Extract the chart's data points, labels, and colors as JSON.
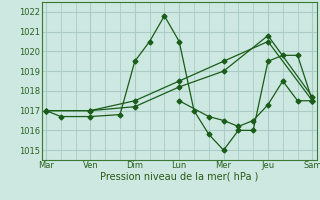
{
  "xlabel": "Pression niveau de la mer( hPa )",
  "bg_color": "#cce8e0",
  "grid_color": "#aaccc4",
  "line_color": "#1a5c1a",
  "marker": "D",
  "marker_size": 2.5,
  "ylim": [
    1014.5,
    1022.5
  ],
  "yticks": [
    1015,
    1016,
    1017,
    1018,
    1019,
    1020,
    1021,
    1022
  ],
  "day_labels": [
    "Mar",
    "Ven",
    "Dim",
    "Lun",
    "Mer",
    "Jeu",
    "Sam"
  ],
  "day_positions": [
    0,
    3,
    6,
    9,
    12,
    15,
    18
  ],
  "xlim": [
    -0.3,
    18.3
  ],
  "series": [
    {
      "x": [
        0,
        1,
        3,
        5,
        6,
        7,
        8,
        9,
        10,
        11,
        12,
        13,
        14,
        15,
        16,
        17,
        18
      ],
      "y": [
        1017.0,
        1016.7,
        1016.7,
        1016.8,
        1019.5,
        1020.5,
        1021.8,
        1020.5,
        1017.0,
        1015.8,
        1015.0,
        1016.0,
        1016.0,
        1019.5,
        1019.8,
        1019.8,
        1017.5
      ]
    },
    {
      "x": [
        0,
        3,
        6,
        9,
        12,
        15,
        18
      ],
      "y": [
        1017.0,
        1017.0,
        1017.5,
        1018.5,
        1019.5,
        1020.5,
        1017.5
      ]
    },
    {
      "x": [
        0,
        3,
        6,
        9,
        12,
        15,
        18
      ],
      "y": [
        1017.0,
        1017.0,
        1017.2,
        1018.2,
        1019.0,
        1020.8,
        1017.7
      ]
    },
    {
      "x": [
        9,
        11,
        12,
        13,
        14,
        15,
        16,
        17,
        18
      ],
      "y": [
        1017.5,
        1016.7,
        1016.5,
        1016.2,
        1016.5,
        1017.3,
        1018.5,
        1017.5,
        1017.5
      ]
    }
  ]
}
